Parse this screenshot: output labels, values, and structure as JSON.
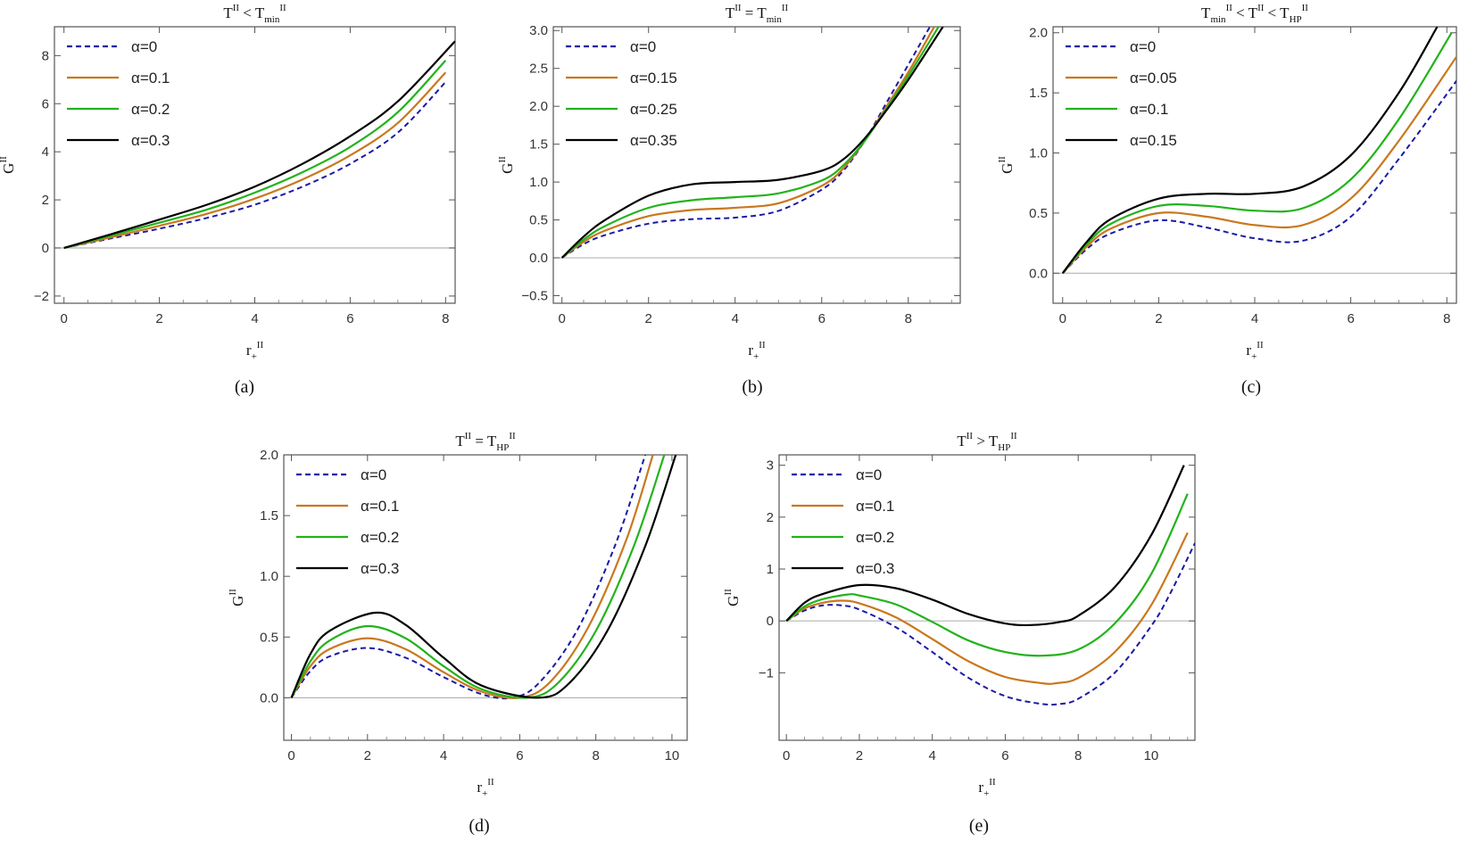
{
  "colors": {
    "series": [
      "#1a1aa6",
      "#c9781e",
      "#22b31b",
      "#000000"
    ]
  },
  "chart_data": [
    {
      "panel": "(a)",
      "type": "line",
      "title": {
        "base": "T",
        "sup1": "II",
        "rel": " < ",
        "base2": "T",
        "sub2": "min",
        "sup2": "II"
      },
      "xlabel": {
        "base": "r",
        "sub": "+",
        "sup": "II"
      },
      "ylabel": {
        "base": "G",
        "sup": "II"
      },
      "xlim": [
        -0.2,
        8.2
      ],
      "ylim": [
        -2.3,
        9.2
      ],
      "xticks": [
        0,
        2,
        4,
        6,
        8
      ],
      "yticks": [
        -2,
        0,
        2,
        4,
        6,
        8
      ],
      "legend": [
        "α=0",
        "α=0.1",
        "α=0.2",
        "α=0.3"
      ],
      "series": [
        {
          "name": "α=0",
          "x": [
            0,
            1,
            2,
            3,
            4,
            5,
            6,
            7,
            8
          ],
          "y": [
            0,
            0.4,
            0.8,
            1.25,
            1.8,
            2.55,
            3.5,
            4.8,
            6.9
          ]
        },
        {
          "name": "α=0.1",
          "x": [
            0,
            1,
            2,
            3,
            4,
            5,
            6,
            7,
            8
          ],
          "y": [
            0,
            0.45,
            0.92,
            1.42,
            2.05,
            2.85,
            3.85,
            5.2,
            7.3
          ]
        },
        {
          "name": "α=0.2",
          "x": [
            0,
            1,
            2,
            3,
            4,
            5,
            6,
            7,
            8
          ],
          "y": [
            0,
            0.52,
            1.05,
            1.6,
            2.3,
            3.15,
            4.2,
            5.65,
            7.8
          ]
        },
        {
          "name": "α=0.3",
          "x": [
            0,
            1,
            2,
            3,
            4,
            5,
            6,
            7,
            8.2
          ],
          "y": [
            0,
            0.58,
            1.18,
            1.8,
            2.55,
            3.5,
            4.65,
            6.1,
            8.6
          ]
        }
      ]
    },
    {
      "panel": "(b)",
      "type": "line",
      "title": {
        "base": "T",
        "sup1": "II",
        "rel": " = ",
        "base2": "T",
        "sub2": "min",
        "sup2": "II"
      },
      "xlabel": {
        "base": "r",
        "sub": "+",
        "sup": "II"
      },
      "ylabel": {
        "base": "G",
        "sup": "II"
      },
      "xlim": [
        -0.2,
        9.2
      ],
      "ylim": [
        -0.6,
        3.05
      ],
      "xticks": [
        0,
        2,
        4,
        6,
        8
      ],
      "yticks": [
        -0.5,
        0.0,
        0.5,
        1.0,
        1.5,
        2.0,
        2.5,
        3.0
      ],
      "legend": [
        "α=0",
        "α=0.15",
        "α=0.25",
        "α=0.35"
      ],
      "series": [
        {
          "name": "α=0",
          "x": [
            0,
            0.5,
            1,
            2,
            3,
            4,
            5,
            6,
            6.5,
            7,
            7.5,
            8,
            8.5
          ],
          "y": [
            0,
            0.18,
            0.3,
            0.45,
            0.51,
            0.53,
            0.62,
            0.9,
            1.15,
            1.55,
            2.05,
            2.55,
            3.05
          ]
        },
        {
          "name": "α=0.15",
          "x": [
            0,
            0.5,
            1,
            2,
            3,
            4,
            5,
            6,
            6.5,
            7,
            7.5,
            8,
            8.6
          ],
          "y": [
            0,
            0.21,
            0.36,
            0.55,
            0.63,
            0.66,
            0.72,
            0.95,
            1.18,
            1.55,
            2.0,
            2.45,
            3.05
          ]
        },
        {
          "name": "α=0.25",
          "x": [
            0,
            0.5,
            1,
            2,
            3,
            4,
            5,
            6,
            6.5,
            7,
            7.5,
            8,
            8.7
          ],
          "y": [
            0,
            0.24,
            0.42,
            0.66,
            0.76,
            0.8,
            0.85,
            1.02,
            1.22,
            1.55,
            1.97,
            2.4,
            3.05
          ]
        },
        {
          "name": "α=0.35",
          "x": [
            0,
            0.5,
            1,
            2,
            3,
            4,
            5,
            6,
            6.5,
            7,
            7.5,
            8,
            8.8
          ],
          "y": [
            0,
            0.28,
            0.5,
            0.82,
            0.97,
            1.0,
            1.03,
            1.15,
            1.3,
            1.58,
            1.95,
            2.35,
            3.05
          ]
        }
      ]
    },
    {
      "panel": "(c)",
      "type": "line",
      "title": {
        "base": "T",
        "sub1": "min",
        "sup1": "II",
        "rel": " < ",
        "base2": "T",
        "sup2": "II",
        "rel2": " < ",
        "base3": "T",
        "sub3": "HP",
        "sup3": "II"
      },
      "xlabel": {
        "base": "r",
        "sub": "+",
        "sup": "II"
      },
      "ylabel": {
        "base": "G",
        "sup": "II"
      },
      "xlim": [
        -0.2,
        8.2
      ],
      "ylim": [
        -0.25,
        2.05
      ],
      "xticks": [
        0,
        2,
        4,
        6,
        8
      ],
      "yticks": [
        0.0,
        0.5,
        1.0,
        1.5,
        2.0
      ],
      "legend": [
        "α=0",
        "α=0.05",
        "α=0.1",
        "α=0.15"
      ],
      "series": [
        {
          "name": "α=0",
          "x": [
            0,
            0.5,
            1,
            2,
            3,
            4,
            5,
            6,
            7,
            8.2
          ],
          "y": [
            0,
            0.2,
            0.33,
            0.44,
            0.38,
            0.29,
            0.27,
            0.47,
            0.95,
            1.6
          ]
        },
        {
          "name": "α=0.05",
          "x": [
            0,
            0.5,
            1,
            2,
            3,
            4,
            5,
            6,
            7,
            8.2
          ],
          "y": [
            0,
            0.22,
            0.37,
            0.5,
            0.47,
            0.4,
            0.4,
            0.62,
            1.1,
            1.8
          ]
        },
        {
          "name": "α=0.1",
          "x": [
            0,
            0.5,
            1,
            2,
            3,
            4,
            5,
            6,
            7,
            8.1
          ],
          "y": [
            0,
            0.24,
            0.41,
            0.56,
            0.56,
            0.52,
            0.54,
            0.78,
            1.28,
            2.0
          ]
        },
        {
          "name": "α=0.15",
          "x": [
            0,
            0.5,
            1,
            2,
            3,
            4,
            5,
            6,
            7,
            7.8
          ],
          "y": [
            0,
            0.26,
            0.45,
            0.62,
            0.66,
            0.66,
            0.72,
            0.98,
            1.5,
            2.05
          ]
        }
      ]
    },
    {
      "panel": "(d)",
      "type": "line",
      "title": {
        "base": "T",
        "sup1": "II",
        "rel": " = ",
        "base2": "T",
        "sub2": "HP",
        "sup2": "II"
      },
      "xlabel": {
        "base": "r",
        "sub": "+",
        "sup": "II"
      },
      "ylabel": {
        "base": "G",
        "sup": "II"
      },
      "xlim": [
        -0.2,
        10.4
      ],
      "ylim": [
        -0.35,
        2.0
      ],
      "xticks": [
        0,
        2,
        4,
        6,
        8,
        10
      ],
      "yticks": [
        0.0,
        0.5,
        1.0,
        1.5,
        2.0
      ],
      "legend": [
        "α=0",
        "α=0.1",
        "α=0.2",
        "α=0.3"
      ],
      "series": [
        {
          "name": "α=0",
          "x": [
            0,
            0.5,
            1,
            2,
            3,
            4,
            5,
            5.8,
            6.5,
            7.5,
            8.5,
            9.3
          ],
          "y": [
            0,
            0.22,
            0.34,
            0.41,
            0.33,
            0.17,
            0.03,
            0.0,
            0.12,
            0.55,
            1.25,
            2.0
          ]
        },
        {
          "name": "α=0.1",
          "x": [
            0,
            0.5,
            1,
            2,
            3,
            4,
            5,
            6,
            6.8,
            7.8,
            8.8,
            9.5
          ],
          "y": [
            0,
            0.26,
            0.4,
            0.49,
            0.4,
            0.21,
            0.05,
            0.0,
            0.13,
            0.58,
            1.3,
            2.0
          ]
        },
        {
          "name": "α=0.2",
          "x": [
            0,
            0.5,
            1,
            2,
            3,
            4,
            5,
            6.2,
            7.0,
            8.0,
            9.0,
            9.8
          ],
          "y": [
            0,
            0.3,
            0.47,
            0.59,
            0.49,
            0.26,
            0.07,
            0.0,
            0.12,
            0.55,
            1.25,
            2.0
          ]
        },
        {
          "name": "α=0.3",
          "x": [
            0,
            0.5,
            1,
            2.2,
            3,
            4,
            5,
            6.5,
            7.3,
            8.3,
            9.3,
            10.1
          ],
          "y": [
            0,
            0.36,
            0.55,
            0.7,
            0.6,
            0.33,
            0.1,
            0.0,
            0.12,
            0.55,
            1.25,
            2.0
          ]
        }
      ]
    },
    {
      "panel": "(e)",
      "type": "line",
      "title": {
        "base": "T",
        "sup1": "II",
        "rel": " > ",
        "base2": "T",
        "sub2": "HP",
        "sup2": "II"
      },
      "xlabel": {
        "base": "r",
        "sub": "+",
        "sup": "II"
      },
      "ylabel": {
        "base": "G",
        "sup": "II"
      },
      "xlim": [
        -0.2,
        11.2
      ],
      "ylim": [
        -2.3,
        3.2
      ],
      "xticks": [
        0,
        2,
        4,
        6,
        8,
        10
      ],
      "yticks": [
        -1,
        0,
        1,
        2,
        3
      ],
      "legend": [
        "α=0",
        "α=0.1",
        "α=0.2",
        "α=0.3"
      ],
      "series": [
        {
          "name": "α=0",
          "x": [
            0,
            0.5,
            1,
            1.5,
            2,
            3,
            4,
            5,
            6,
            7,
            7.5,
            8,
            9,
            10,
            10.5,
            11.2
          ],
          "y": [
            0,
            0.2,
            0.3,
            0.3,
            0.22,
            -0.12,
            -0.6,
            -1.1,
            -1.45,
            -1.6,
            -1.6,
            -1.5,
            -1.0,
            -0.1,
            0.5,
            1.5
          ]
        },
        {
          "name": "α=0.1",
          "x": [
            0,
            0.5,
            1,
            1.5,
            2,
            3,
            4,
            5,
            6,
            7,
            7.4,
            8,
            9,
            10,
            11
          ],
          "y": [
            0,
            0.24,
            0.35,
            0.39,
            0.34,
            0.07,
            -0.35,
            -0.78,
            -1.08,
            -1.2,
            -1.2,
            -1.1,
            -0.6,
            0.3,
            1.7
          ]
        },
        {
          "name": "α=0.2",
          "x": [
            0,
            0.5,
            1,
            1.7,
            2,
            3,
            4,
            5,
            6,
            7,
            8,
            9,
            10,
            11
          ],
          "y": [
            0,
            0.28,
            0.42,
            0.51,
            0.49,
            0.32,
            -0.02,
            -0.38,
            -0.6,
            -0.67,
            -0.55,
            -0.05,
            0.9,
            2.45
          ]
        },
        {
          "name": "α=0.3",
          "x": [
            0,
            0.5,
            1,
            2,
            3,
            4,
            5,
            6,
            6.7,
            7.5,
            8,
            9,
            10,
            10.9
          ],
          "y": [
            0,
            0.35,
            0.52,
            0.69,
            0.63,
            0.41,
            0.13,
            -0.05,
            -0.08,
            -0.02,
            0.1,
            0.65,
            1.65,
            3.0
          ]
        }
      ]
    }
  ]
}
